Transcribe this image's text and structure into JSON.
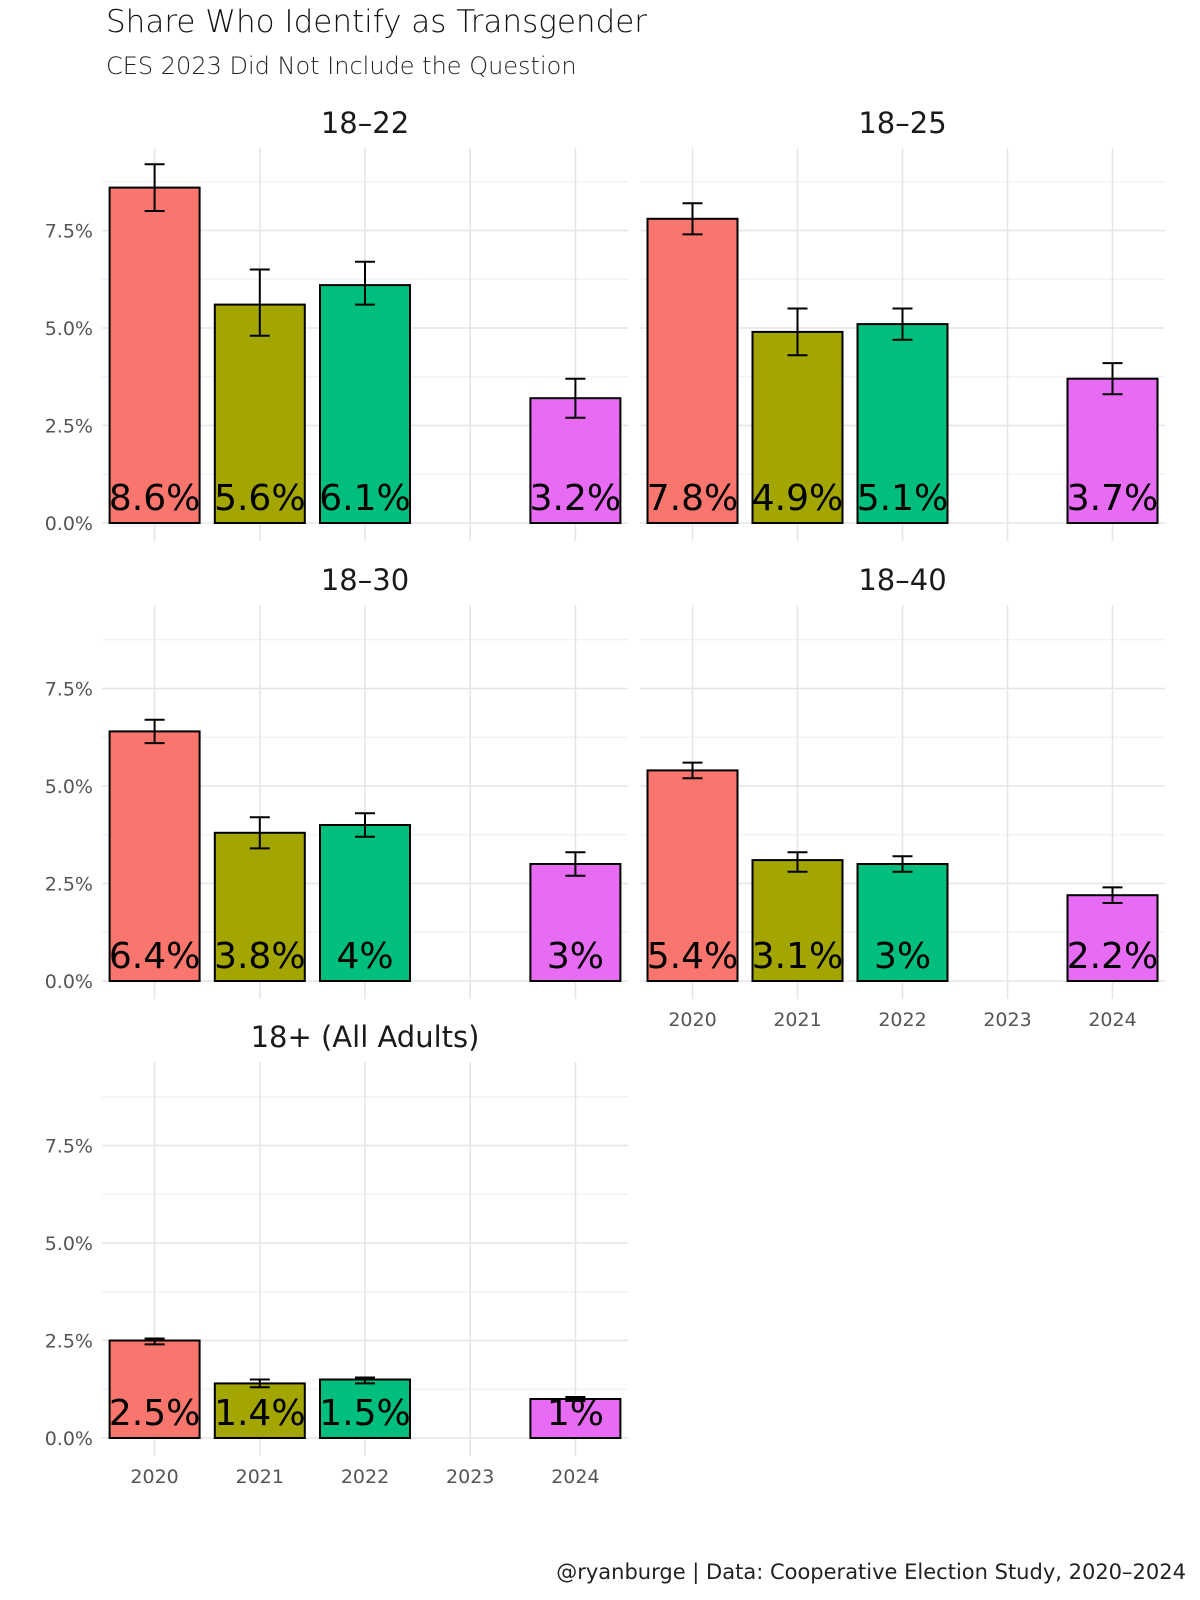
{
  "title": "Share Who Identify as Transgender",
  "subtitle": "CES 2023 Did Not Include the Question",
  "caption": "@ryanburge | Data: Cooperative Election Study, 2020–2024",
  "colors": {
    "2020": "#F8766D",
    "2021": "#A3A500",
    "2022": "#00BF7D",
    "2023": "#00B0F6",
    "2024": "#E76BF3"
  },
  "chart_data": {
    "type": "bar",
    "x_categories": [
      "2020",
      "2021",
      "2022",
      "2023",
      "2024"
    ],
    "y_ticks": [
      "0.0%",
      "2.5%",
      "5.0%",
      "7.5%"
    ],
    "y_tick_values": [
      0,
      2.5,
      5.0,
      7.5
    ],
    "ylim": [
      0,
      9.2
    ],
    "error_bars": true,
    "facets": [
      {
        "title": "18–22",
        "bars": [
          {
            "year": "2020",
            "value": 8.6,
            "lower": 8.0,
            "upper": 9.2,
            "label": "8.6%"
          },
          {
            "year": "2021",
            "value": 5.6,
            "lower": 4.8,
            "upper": 6.5,
            "label": "5.6%"
          },
          {
            "year": "2022",
            "value": 6.1,
            "lower": 5.6,
            "upper": 6.7,
            "label": "6.1%"
          },
          {
            "year": "2024",
            "value": 3.2,
            "lower": 2.7,
            "upper": 3.7,
            "label": "3.2%"
          }
        ]
      },
      {
        "title": "18–25",
        "bars": [
          {
            "year": "2020",
            "value": 7.8,
            "lower": 7.4,
            "upper": 8.2,
            "label": "7.8%"
          },
          {
            "year": "2021",
            "value": 4.9,
            "lower": 4.3,
            "upper": 5.5,
            "label": "4.9%"
          },
          {
            "year": "2022",
            "value": 5.1,
            "lower": 4.7,
            "upper": 5.5,
            "label": "5.1%"
          },
          {
            "year": "2024",
            "value": 3.7,
            "lower": 3.3,
            "upper": 4.1,
            "label": "3.7%"
          }
        ]
      },
      {
        "title": "18–30",
        "bars": [
          {
            "year": "2020",
            "value": 6.4,
            "lower": 6.1,
            "upper": 6.7,
            "label": "6.4%"
          },
          {
            "year": "2021",
            "value": 3.8,
            "lower": 3.4,
            "upper": 4.2,
            "label": "3.8%"
          },
          {
            "year": "2022",
            "value": 4.0,
            "lower": 3.7,
            "upper": 4.3,
            "label": "4%"
          },
          {
            "year": "2024",
            "value": 3.0,
            "lower": 2.7,
            "upper": 3.3,
            "label": "3%"
          }
        ]
      },
      {
        "title": "18–40",
        "bars": [
          {
            "year": "2020",
            "value": 5.4,
            "lower": 5.2,
            "upper": 5.6,
            "label": "5.4%"
          },
          {
            "year": "2021",
            "value": 3.1,
            "lower": 2.8,
            "upper": 3.3,
            "label": "3.1%"
          },
          {
            "year": "2022",
            "value": 3.0,
            "lower": 2.8,
            "upper": 3.2,
            "label": "3%"
          },
          {
            "year": "2024",
            "value": 2.2,
            "lower": 2.0,
            "upper": 2.4,
            "label": "2.2%"
          }
        ]
      },
      {
        "title": "18+ (All Adults)",
        "bars": [
          {
            "year": "2020",
            "value": 2.5,
            "lower": 2.4,
            "upper": 2.55,
            "label": "2.5%"
          },
          {
            "year": "2021",
            "value": 1.4,
            "lower": 1.3,
            "upper": 1.5,
            "label": "1.4%"
          },
          {
            "year": "2022",
            "value": 1.5,
            "lower": 1.4,
            "upper": 1.55,
            "label": "1.5%"
          },
          {
            "year": "2024",
            "value": 1.0,
            "lower": 0.95,
            "upper": 1.05,
            "label": "1%"
          }
        ]
      }
    ]
  }
}
